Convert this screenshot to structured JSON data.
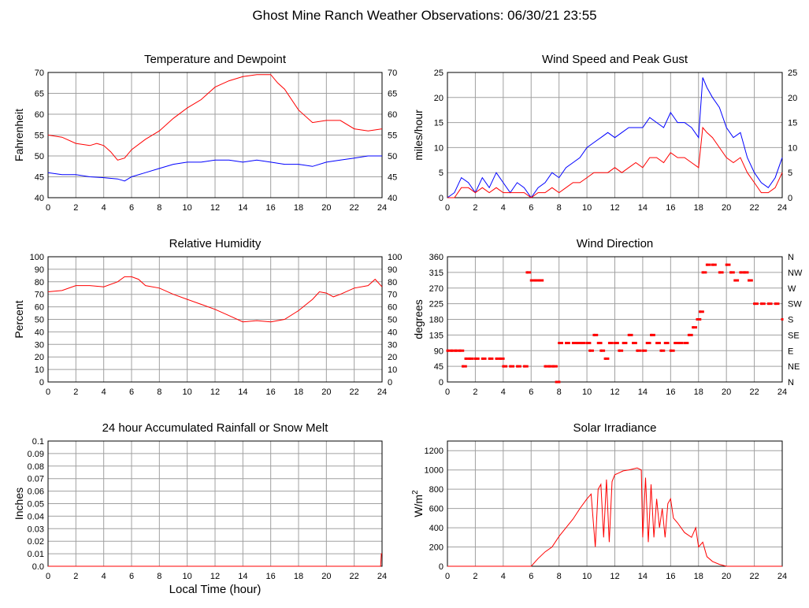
{
  "page": {
    "title": "Ghost Mine Ranch Weather Observations: 06/30/21 23:55"
  },
  "colors": {
    "red": "#ff0000",
    "blue": "#0000ff",
    "grid": "#a0a0a0",
    "frame": "#000000"
  },
  "chart_data": [
    {
      "id": "temp",
      "type": "line",
      "title": "Temperature and Dewpoint",
      "ylabel": "Fahrenheit",
      "xlabel": "",
      "xlim": [
        0,
        24
      ],
      "ylim": [
        40,
        70
      ],
      "xticks": [
        "0",
        "2",
        "4",
        "6",
        "8",
        "10",
        "12",
        "14",
        "16",
        "18",
        "20",
        "22",
        "24"
      ],
      "yticks": [
        "40",
        "45",
        "50",
        "55",
        "60",
        "65",
        "70"
      ],
      "right_yticks": [
        "40",
        "45",
        "50",
        "55",
        "60",
        "65",
        "70"
      ],
      "series": [
        {
          "color": "#ff0000",
          "x": [
            0,
            1,
            2,
            3,
            3.5,
            4,
            4.5,
            5,
            5.5,
            6,
            7,
            8,
            9,
            10,
            11,
            12,
            13,
            14,
            15,
            16,
            16.5,
            17,
            18,
            19,
            20,
            21,
            22,
            23,
            24
          ],
          "y": [
            55,
            54.5,
            53,
            52.5,
            53,
            52.5,
            51,
            49,
            49.5,
            51.5,
            54,
            56,
            59,
            61.5,
            63.5,
            66.5,
            68,
            69,
            69.5,
            69.5,
            67.5,
            66,
            61,
            58,
            58.5,
            58.5,
            56.5,
            56,
            56.5
          ]
        },
        {
          "color": "#0000ff",
          "x": [
            0,
            1,
            2,
            3,
            4,
            5,
            5.5,
            6,
            7,
            8,
            9,
            10,
            11,
            12,
            13,
            14,
            15,
            16,
            17,
            18,
            19,
            20,
            21,
            22,
            23,
            24
          ],
          "y": [
            46,
            45.5,
            45.5,
            45,
            44.8,
            44.5,
            44,
            45,
            46,
            47,
            48,
            48.5,
            48.5,
            49,
            49,
            48.5,
            49,
            48.5,
            48,
            48,
            47.5,
            48.5,
            49,
            49.5,
            50,
            50
          ]
        }
      ]
    },
    {
      "id": "wind",
      "type": "line",
      "title": "Wind Speed and Peak Gust",
      "ylabel": "miles/hour",
      "xlabel": "",
      "xlim": [
        0,
        24
      ],
      "ylim": [
        0,
        25
      ],
      "xticks": [
        "0",
        "2",
        "4",
        "6",
        "8",
        "10",
        "12",
        "14",
        "16",
        "18",
        "20",
        "22",
        "24"
      ],
      "yticks": [
        "0",
        "5",
        "10",
        "15",
        "20",
        "25"
      ],
      "right_yticks": [
        "0",
        "5",
        "10",
        "15",
        "20",
        "25"
      ],
      "series": [
        {
          "color": "#0000ff",
          "x": [
            0,
            0.5,
            1,
            1.5,
            2,
            2.5,
            3,
            3.5,
            4,
            4.5,
            5,
            5.5,
            6,
            6.5,
            7,
            7.5,
            8,
            8.5,
            9,
            9.5,
            10,
            10.5,
            11,
            11.5,
            12,
            12.5,
            13,
            13.5,
            14,
            14.5,
            15,
            15.5,
            16,
            16.5,
            17,
            17.5,
            18,
            18.3,
            18.6,
            19,
            19.5,
            20,
            20.5,
            21,
            21.5,
            22,
            22.5,
            23,
            23.5,
            24
          ],
          "y": [
            0,
            1,
            4,
            3,
            1,
            4,
            2,
            5,
            3,
            1,
            3,
            2,
            0,
            2,
            3,
            5,
            4,
            6,
            7,
            8,
            10,
            11,
            12,
            13,
            12,
            13,
            14,
            14,
            14,
            16,
            15,
            14,
            17,
            15,
            15,
            14,
            12,
            24,
            22,
            20,
            18,
            14,
            12,
            13,
            8,
            5,
            3,
            2,
            4,
            8
          ]
        },
        {
          "color": "#ff0000",
          "x": [
            0,
            0.5,
            1,
            1.5,
            2,
            2.5,
            3,
            3.5,
            4,
            4.5,
            5,
            5.5,
            6,
            6.5,
            7,
            7.5,
            8,
            8.5,
            9,
            9.5,
            10,
            10.5,
            11,
            11.5,
            12,
            12.5,
            13,
            13.5,
            14,
            14.5,
            15,
            15.5,
            16,
            16.5,
            17,
            17.5,
            18,
            18.3,
            18.6,
            19,
            19.5,
            20,
            20.5,
            21,
            21.5,
            22,
            22.5,
            23,
            23.5,
            24
          ],
          "y": [
            0,
            0,
            2,
            2,
            1,
            2,
            1,
            2,
            1,
            1,
            1,
            1,
            0,
            1,
            1,
            2,
            1,
            2,
            3,
            3,
            4,
            5,
            5,
            5,
            6,
            5,
            6,
            7,
            6,
            8,
            8,
            7,
            9,
            8,
            8,
            7,
            6,
            14,
            13,
            12,
            10,
            8,
            7,
            8,
            5,
            3,
            1,
            1,
            2,
            5
          ]
        }
      ]
    },
    {
      "id": "rh",
      "type": "line",
      "title": "Relative Humidity",
      "ylabel": "Percent",
      "xlabel": "",
      "xlim": [
        0,
        24
      ],
      "ylim": [
        0,
        100
      ],
      "xticks": [
        "0",
        "2",
        "4",
        "6",
        "8",
        "10",
        "12",
        "14",
        "16",
        "18",
        "20",
        "22",
        "24"
      ],
      "yticks": [
        "0",
        "10",
        "20",
        "30",
        "40",
        "50",
        "60",
        "70",
        "80",
        "90",
        "100"
      ],
      "right_yticks": [
        "0",
        "10",
        "20",
        "30",
        "40",
        "50",
        "60",
        "70",
        "80",
        "90",
        "100"
      ],
      "series": [
        {
          "color": "#ff0000",
          "x": [
            0,
            1,
            2,
            3,
            4,
            5,
            5.5,
            6,
            6.5,
            7,
            8,
            9,
            10,
            11,
            12,
            13,
            14,
            15,
            16,
            17,
            18,
            19,
            19.5,
            20,
            20.5,
            21,
            22,
            23,
            23.5,
            24
          ],
          "y": [
            72,
            73,
            77,
            77,
            76,
            80,
            84,
            84,
            82,
            77,
            75,
            70,
            66,
            62,
            58,
            53,
            48,
            49,
            48,
            50,
            57,
            66,
            72,
            71,
            68,
            70,
            75,
            77,
            82,
            76
          ]
        }
      ]
    },
    {
      "id": "winddir",
      "type": "scatter",
      "title": "Wind Direction",
      "ylabel": "degrees",
      "xlabel": "",
      "xlim": [
        0,
        24
      ],
      "ylim": [
        0,
        360
      ],
      "xticks": [
        "0",
        "2",
        "4",
        "6",
        "8",
        "10",
        "12",
        "14",
        "16",
        "18",
        "20",
        "22",
        "24"
      ],
      "yticks": [
        "0",
        "45",
        "90",
        "135",
        "180",
        "225",
        "270",
        "315",
        "360"
      ],
      "right_yticks": [
        "N",
        "NE",
        "E",
        "SE",
        "S",
        "SW",
        "W",
        "NW",
        "N"
      ],
      "series": [
        {
          "color": "#ff0000",
          "x": [
            0,
            0.3,
            0.6,
            0.9,
            1.1,
            1.3,
            1.6,
            2,
            2.5,
            3,
            3.5,
            3.8,
            4,
            4.5,
            5,
            5.5,
            5.7,
            6,
            6.3,
            6.6,
            7,
            7.3,
            7.6,
            7.8,
            8,
            8.5,
            9,
            9.3,
            9.6,
            10,
            10.2,
            10.5,
            10.8,
            11,
            11.3,
            11.6,
            12,
            12.3,
            12.6,
            13,
            13.3,
            13.6,
            14,
            14.3,
            14.6,
            15,
            15.3,
            15.6,
            16,
            16.3,
            16.6,
            17,
            17.3,
            17.6,
            17.9,
            18.1,
            18.3,
            18.6,
            19,
            19.5,
            20,
            20.3,
            20.6,
            21,
            21.3,
            21.6,
            22,
            22.5,
            23,
            23.5,
            24
          ],
          "y": [
            90,
            90,
            90,
            90,
            45,
            67,
            67,
            67,
            67,
            67,
            67,
            67,
            45,
            45,
            45,
            45,
            315,
            292,
            292,
            292,
            45,
            45,
            45,
            0,
            112,
            112,
            112,
            112,
            112,
            112,
            90,
            135,
            112,
            90,
            67,
            112,
            112,
            90,
            112,
            135,
            112,
            90,
            90,
            112,
            135,
            112,
            90,
            112,
            90,
            112,
            112,
            112,
            135,
            157,
            180,
            202,
            315,
            337,
            337,
            315,
            337,
            315,
            292,
            315,
            315,
            292,
            225,
            225,
            225,
            225,
            180
          ]
        }
      ]
    },
    {
      "id": "rain",
      "type": "line",
      "title": "24 hour Accumulated Rainfall or Snow Melt",
      "ylabel": "Inches",
      "xlabel": "Local Time (hour)",
      "xlim": [
        0,
        24
      ],
      "ylim": [
        0,
        0.1
      ],
      "xticks": [
        "0",
        "2",
        "4",
        "6",
        "8",
        "10",
        "12",
        "14",
        "16",
        "18",
        "20",
        "22",
        "24"
      ],
      "yticks": [
        "0.0",
        "0.01",
        "0.02",
        "0.03",
        "0.04",
        "0.05",
        "0.06",
        "0.07",
        "0.08",
        "0.09",
        "0.1"
      ],
      "right_yticks": [],
      "series": [
        {
          "color": "#ff0000",
          "x": [
            0,
            23.9,
            23.95,
            24
          ],
          "y": [
            0,
            0,
            0.01,
            0.01
          ]
        }
      ]
    },
    {
      "id": "solar",
      "type": "line",
      "title": "Solar Irradiance",
      "ylabel": "W/m",
      "ylabel_sup": "2",
      "xlabel": "",
      "xlim": [
        0,
        24
      ],
      "ylim": [
        0,
        1300
      ],
      "xticks": [
        "0",
        "2",
        "4",
        "6",
        "8",
        "10",
        "12",
        "14",
        "16",
        "18",
        "20",
        "22",
        "24"
      ],
      "yticks": [
        "0",
        "200",
        "400",
        "600",
        "800",
        "1000",
        "1200"
      ],
      "right_yticks": [],
      "series": [
        {
          "color": "#ff0000",
          "x": [
            0,
            6,
            6.5,
            7,
            7.5,
            8,
            8.5,
            9,
            9.5,
            10,
            10.3,
            10.6,
            10.8,
            11,
            11.2,
            11.4,
            11.6,
            11.8,
            12,
            12.3,
            12.6,
            13,
            13.3,
            13.6,
            13.9,
            14,
            14.2,
            14.4,
            14.6,
            14.8,
            15,
            15.2,
            15.4,
            15.6,
            15.8,
            16,
            16.2,
            16.5,
            17,
            17.5,
            17.8,
            18,
            18.3,
            18.6,
            19,
            19.5,
            20,
            20.5,
            24
          ],
          "y": [
            0,
            0,
            80,
            150,
            200,
            310,
            400,
            490,
            600,
            700,
            750,
            200,
            800,
            850,
            300,
            900,
            250,
            880,
            950,
            970,
            990,
            1000,
            1010,
            1020,
            1000,
            300,
            920,
            250,
            850,
            300,
            700,
            400,
            600,
            300,
            650,
            700,
            500,
            450,
            350,
            300,
            400,
            200,
            250,
            100,
            50,
            20,
            0,
            0,
            0
          ]
        }
      ]
    }
  ]
}
